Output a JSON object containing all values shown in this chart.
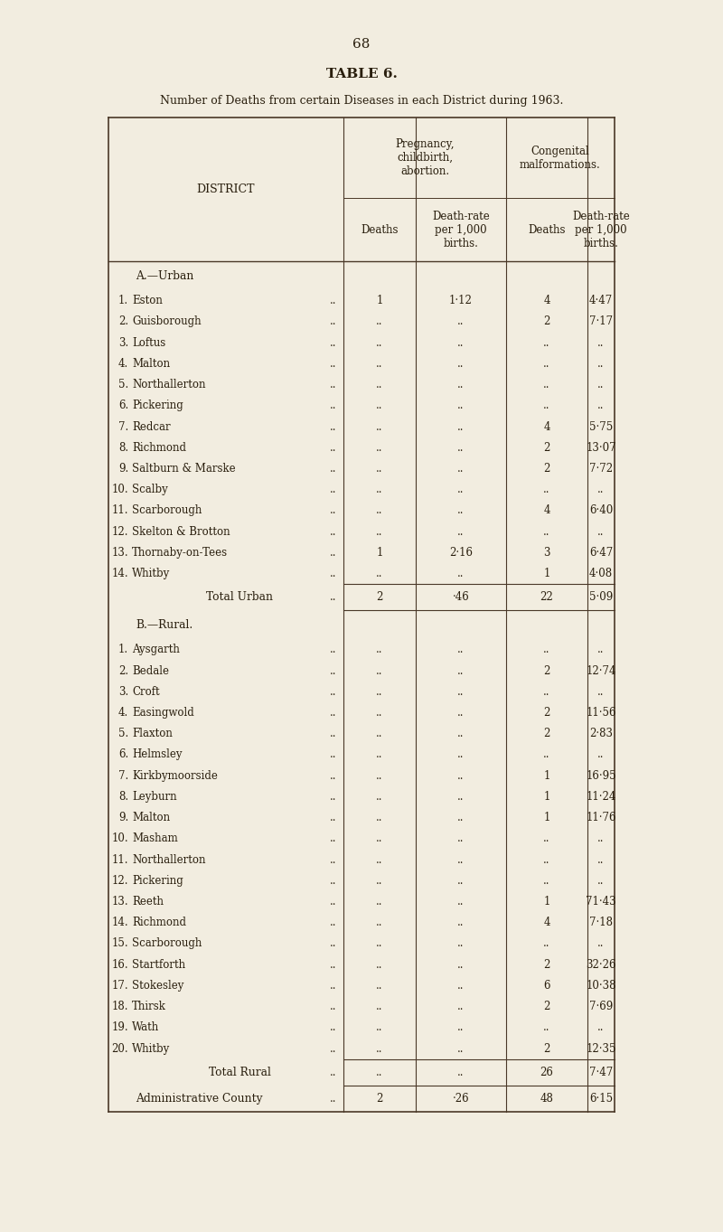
{
  "page_number": "68",
  "table_title": "TABLE 6.",
  "subtitle": "Number of Deaths from certain Diseases in each District during 1963.",
  "bg_color": "#f2ede0",
  "text_color": "#2a1f0e",
  "section_a_header": "A.—Urban",
  "section_b_header": "B.—Rural.",
  "urban_rows": [
    {
      "num": "1.",
      "name": "Eston",
      "d1": "1",
      "r1": "1·12",
      "d2": "4",
      "r2": "4·47"
    },
    {
      "num": "2.",
      "name": "Guisborough",
      "d1": "..",
      "r1": "..",
      "d2": "2",
      "r2": "7·17"
    },
    {
      "num": "3.",
      "name": "Loftus",
      "d1": "..",
      "r1": "..",
      "d2": "..",
      "r2": ".."
    },
    {
      "num": "4.",
      "name": "Malton",
      "d1": "..",
      "r1": "..",
      "d2": "..",
      "r2": ".."
    },
    {
      "num": "5.",
      "name": "Northallerton",
      "d1": "..",
      "r1": "..",
      "d2": "..",
      "r2": ".."
    },
    {
      "num": "6.",
      "name": "Pickering",
      "d1": "..",
      "r1": "..",
      "d2": "..",
      "r2": ".."
    },
    {
      "num": "7.",
      "name": "Redcar",
      "d1": "..",
      "r1": "..",
      "d2": "4",
      "r2": "5·75"
    },
    {
      "num": "8.",
      "name": "Richmond",
      "d1": "..",
      "r1": "..",
      "d2": "2",
      "r2": "13·07"
    },
    {
      "num": "9.",
      "name": "Saltburn & Marske",
      "d1": "..",
      "r1": "..",
      "d2": "2",
      "r2": "7·72"
    },
    {
      "num": "10.",
      "name": "Scalby",
      "d1": "..",
      "r1": "..",
      "d2": "..",
      "r2": ".."
    },
    {
      "num": "11.",
      "name": "Scarborough",
      "d1": "..",
      "r1": "..",
      "d2": "4",
      "r2": "6·40"
    },
    {
      "num": "12.",
      "name": "Skelton & Brotton",
      "d1": "..",
      "r1": "..",
      "d2": "..",
      "r2": ".."
    },
    {
      "num": "13.",
      "name": "Thornaby-on-Tees",
      "d1": "1",
      "r1": "2·16",
      "d2": "3",
      "r2": "6·47"
    },
    {
      "num": "14.",
      "name": "Whitby",
      "d1": "..",
      "r1": "..",
      "d2": "1",
      "r2": "4·08"
    }
  ],
  "urban_total": {
    "label": "Total Urban",
    "d1": "2",
    "r1": "·46",
    "d2": "22",
    "r2": "5·09"
  },
  "rural_rows": [
    {
      "num": "1.",
      "name": "Aysgarth",
      "d1": "..",
      "r1": "..",
      "d2": "..",
      "r2": ".."
    },
    {
      "num": "2.",
      "name": "Bedale",
      "d1": "..",
      "r1": "..",
      "d2": "2",
      "r2": "12·74"
    },
    {
      "num": "3.",
      "name": "Croft",
      "d1": "..",
      "r1": "..",
      "d2": "..",
      "r2": ".."
    },
    {
      "num": "4.",
      "name": "Easingwold",
      "d1": "..",
      "r1": "..",
      "d2": "2",
      "r2": "11·56"
    },
    {
      "num": "5.",
      "name": "Flaxton",
      "d1": "..",
      "r1": "..",
      "d2": "2",
      "r2": "2·83"
    },
    {
      "num": "6.",
      "name": "Helmsley",
      "d1": "..",
      "r1": "..",
      "d2": "..",
      "r2": ".."
    },
    {
      "num": "7.",
      "name": "Kirkbymoorside",
      "d1": "..",
      "r1": "..",
      "d2": "1",
      "r2": "16·95"
    },
    {
      "num": "8.",
      "name": "Leyburn",
      "d1": "..",
      "r1": "..",
      "d2": "1",
      "r2": "11·24"
    },
    {
      "num": "9.",
      "name": "Malton",
      "d1": "..",
      "r1": "..",
      "d2": "1",
      "r2": "11·76"
    },
    {
      "num": "10.",
      "name": "Masham",
      "d1": "..",
      "r1": "..",
      "d2": "..",
      "r2": ".."
    },
    {
      "num": "11.",
      "name": "Northallerton",
      "d1": "..",
      "r1": "..",
      "d2": "..",
      "r2": ".."
    },
    {
      "num": "12.",
      "name": "Pickering",
      "d1": "..",
      "r1": "..",
      "d2": "..",
      "r2": ".."
    },
    {
      "num": "13.",
      "name": "Reeth",
      "d1": "..",
      "r1": "..",
      "d2": "1",
      "r2": "71·43"
    },
    {
      "num": "14.",
      "name": "Richmond",
      "d1": "..",
      "r1": "..",
      "d2": "4",
      "r2": "7·18"
    },
    {
      "num": "15.",
      "name": "Scarborough",
      "d1": "..",
      "r1": "..",
      "d2": "..",
      "r2": ".."
    },
    {
      "num": "16.",
      "name": "Startforth",
      "d1": "..",
      "r1": "..",
      "d2": "2",
      "r2": "32·26"
    },
    {
      "num": "17.",
      "name": "Stokesley",
      "d1": "..",
      "r1": "..",
      "d2": "6",
      "r2": "10·38"
    },
    {
      "num": "18.",
      "name": "Thirsk",
      "d1": "..",
      "r1": "..",
      "d2": "2",
      "r2": "7·69"
    },
    {
      "num": "19.",
      "name": "Wath",
      "d1": "..",
      "r1": "..",
      "d2": "..",
      "r2": ".."
    },
    {
      "num": "20.",
      "name": "Whitby",
      "d1": "..",
      "r1": "..",
      "d2": "2",
      "r2": "12·35"
    }
  ],
  "rural_total": {
    "label": "Total Rural",
    "d1": "..",
    "r1": "..",
    "d2": "26",
    "r2": "7·47"
  },
  "admin_total": {
    "label": "Administrative County",
    "d1": "2",
    "r1": "·26",
    "d2": "48",
    "r2": "6·15"
  }
}
